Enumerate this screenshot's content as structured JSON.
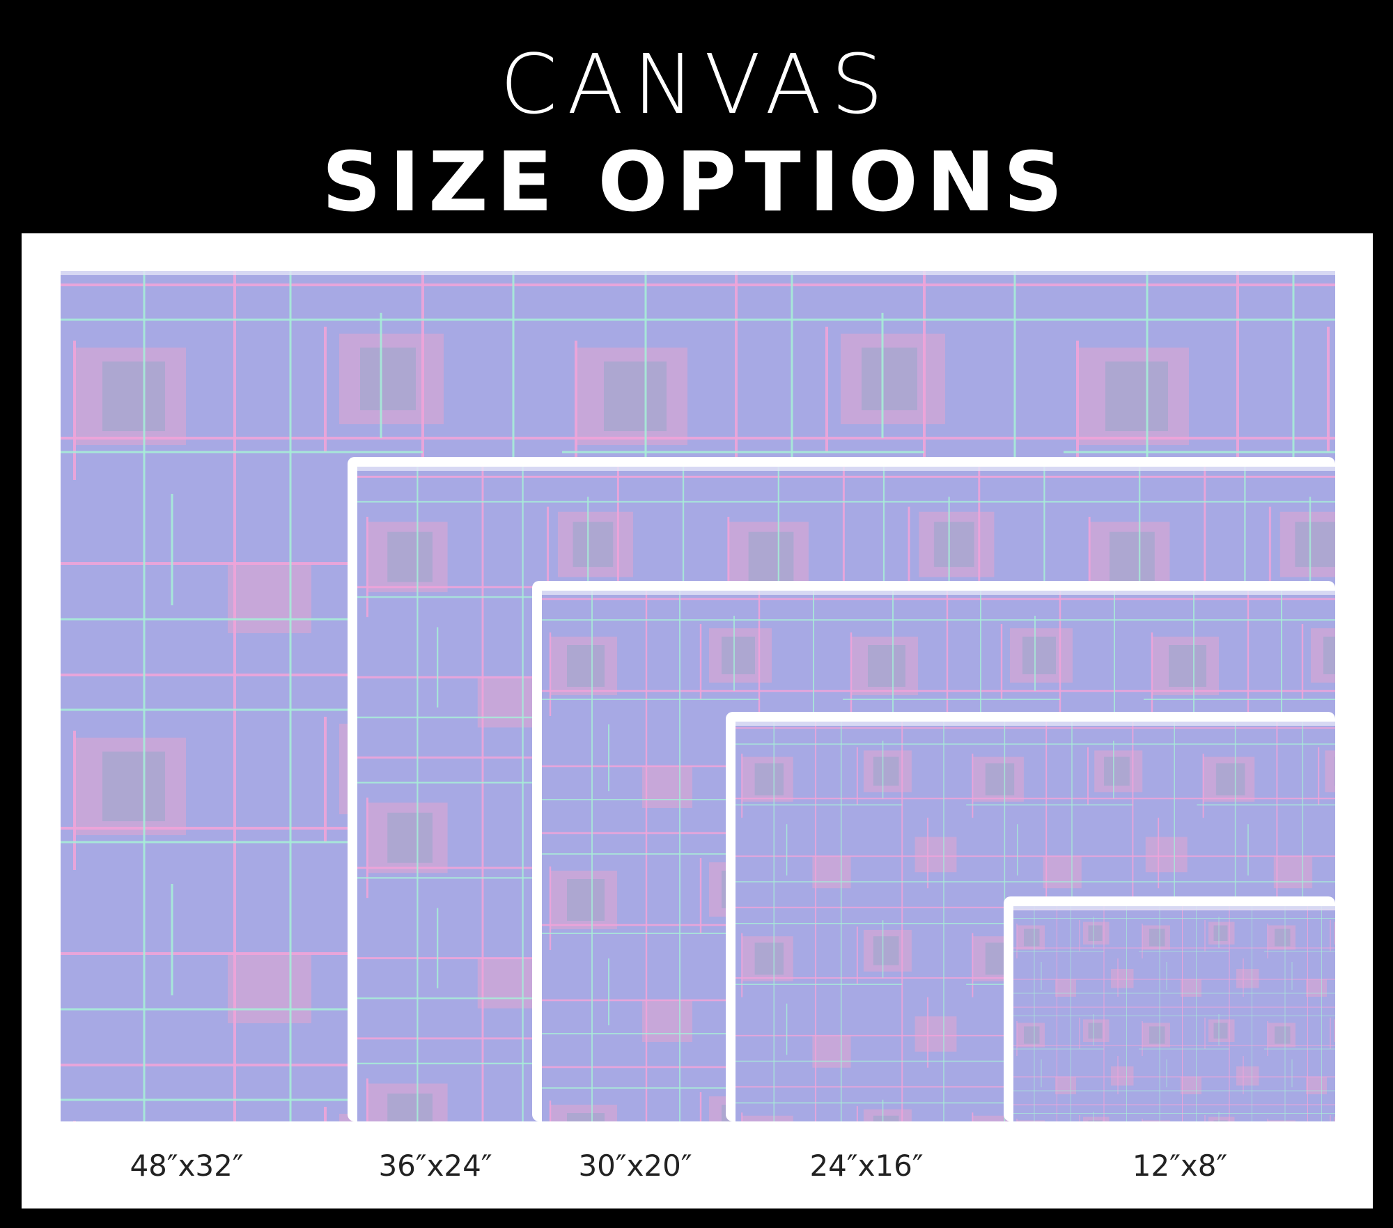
{
  "header": {
    "title": "CANVAS",
    "subtitle": "SIZE OPTIONS"
  },
  "sizes": [
    "48″x32″",
    "36″x24″",
    "30″x20″",
    "24″x16″",
    "12″x8″"
  ]
}
